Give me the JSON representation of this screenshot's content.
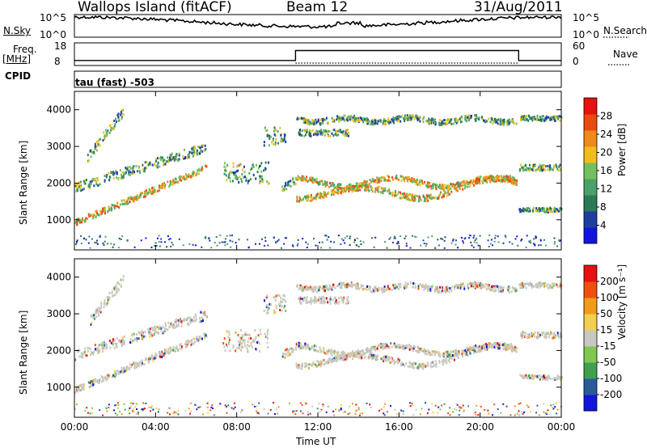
{
  "header": {
    "site": "Wallops Island (fitACF)",
    "beam": "Beam 12",
    "date": "31/Aug/2011"
  },
  "side_labels": {
    "nsky": "N.Sky",
    "freq_line1": "Freq.",
    "freq_line2": "[MHz]",
    "cpid": "CPID",
    "nsearch": "N.Search",
    "nave": "Nave"
  },
  "cpid_text": "tau (fast) -503",
  "colors": {
    "power": [
      "#1414e0",
      "#1f3f9e",
      "#2c7a55",
      "#4aa26a",
      "#74c060",
      "#f2bd1a",
      "#ef8a1a",
      "#ea4a10",
      "#e81010"
    ],
    "velocity": [
      "#e81010",
      "#ef5010",
      "#f29a1a",
      "#f2cf50",
      "#c8c8c0",
      "#80c850",
      "#40a050",
      "#2a5a9a",
      "#1414e0"
    ],
    "trace": "#000000"
  },
  "chart_data": [
    {
      "type": "line",
      "name": "N.Sky / N.Search",
      "ylabels_left": [
        "10^5",
        "10^0"
      ],
      "ylabels_right": [
        "10^5",
        "10^0"
      ]
    },
    {
      "type": "line",
      "name": "Freq / Nave",
      "y_left_ticks": [
        18,
        8
      ],
      "y_right_ticks": [
        60,
        0
      ],
      "freq_segments": [
        {
          "start_hr": 0,
          "end_hr": 10.9,
          "mhz": 10.2
        },
        {
          "start_hr": 10.9,
          "end_hr": 21.9,
          "mhz": 14.6
        },
        {
          "start_hr": 21.9,
          "end_hr": 24,
          "mhz": 10.2
        }
      ]
    },
    {
      "type": "heatmap",
      "name": "Power",
      "ylabel": "Slant Range [km]",
      "colorbar_label": "Power [dB]",
      "colorbar_ticks": [
        "28",
        "24",
        "20",
        "16",
        "12",
        "8",
        "4"
      ],
      "ylim": [
        180,
        4500
      ],
      "yticks": [
        1000,
        2000,
        3000,
        4000
      ],
      "xlim": [
        0,
        24
      ]
    },
    {
      "type": "heatmap",
      "name": "Velocity",
      "ylabel": "Slant Range [km]",
      "colorbar_label": "Velocity [m s⁻¹]",
      "colorbar_ticks": [
        "200",
        "100",
        "50",
        "15",
        "-15",
        "-50",
        "-100",
        "-200"
      ],
      "ylim": [
        180,
        4500
      ],
      "yticks": [
        1000,
        2000,
        3000,
        4000
      ],
      "xlim": [
        0,
        24
      ]
    }
  ],
  "time_axis": {
    "label": "Time UT",
    "ticks": [
      "00:00",
      "04:00",
      "08:00",
      "12:00",
      "16:00",
      "20:00",
      "00:00"
    ]
  }
}
